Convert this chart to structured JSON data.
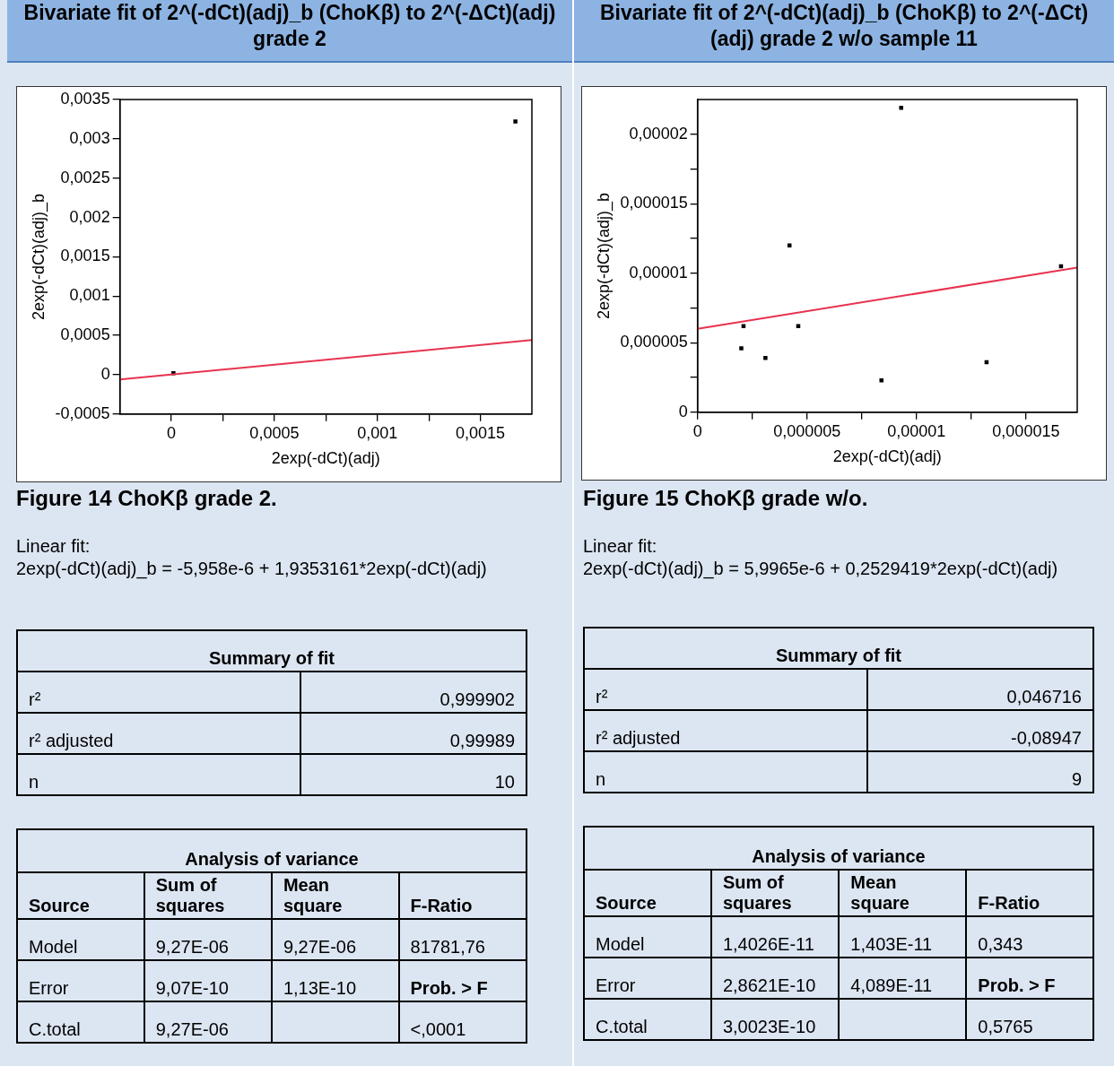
{
  "chart_data": [
    {
      "type": "scatter",
      "title": "Bivariate fit of 2^(-dCt)(adj)_b (ChoKβ) to 2^(-ΔCt)(adj) grade 2",
      "xlabel": "2exp(-dCt)(adj)",
      "ylabel": "2exp(-dCt)(adj)_b",
      "xlim": [
        -0.00025,
        0.00175
      ],
      "ylim": [
        -0.0005,
        0.0035
      ],
      "xticks": [
        {
          "value": 0,
          "label": "0"
        },
        {
          "value": 0.00025,
          "label": null
        },
        {
          "value": 0.0005,
          "label": "0,0005"
        },
        {
          "value": 0.00075,
          "label": null
        },
        {
          "value": 0.001,
          "label": "0,001"
        },
        {
          "value": 0.00125,
          "label": null
        },
        {
          "value": 0.0015,
          "label": "0,0015"
        }
      ],
      "yticks": [
        {
          "value": -0.0005,
          "label": "-0,0005"
        },
        {
          "value": 0,
          "label": "0"
        },
        {
          "value": 0.0005,
          "label": "0,0005"
        },
        {
          "value": 0.001,
          "label": "0,001"
        },
        {
          "value": 0.0015,
          "label": "0,0015"
        },
        {
          "value": 0.002,
          "label": "0,002"
        },
        {
          "value": 0.0025,
          "label": "0,0025"
        },
        {
          "value": 0.003,
          "label": "0,003"
        },
        {
          "value": 0.0035,
          "label": "0,0035"
        }
      ],
      "series": [
        {
          "type": "line",
          "marker": "none",
          "color": "#e8334f",
          "x": [
            -0.00025,
            0.00175
          ],
          "values": [
            -6e-05,
            0.00044
          ]
        },
        {
          "marker": "square",
          "color": "#000000",
          "x": [
            1e-05,
            0.00167
          ],
          "values": [
            2e-05,
            0.00322
          ]
        }
      ],
      "annotations": [
        "Figure 14 ChoKβ grade 2.",
        "Linear fit:",
        "2exp(-dCt)(adj)_b = -5,958e-6 + 1,9353161*2exp(-dCt)(adj)",
        "Summary of fit",
        "r²",
        "0,999902",
        "r² adjusted",
        "0,99989",
        "n",
        "10",
        "Analysis of variance",
        "Source",
        "Sum of squares",
        "Mean square",
        "F-Ratio",
        "Model",
        "9,27E-06",
        "9,27E-06",
        "81781,76",
        "Error",
        "9,07E-10",
        "1,13E-10",
        "Prob. > F",
        "C.total",
        "9,27E-06",
        "<,0001"
      ]
    },
    {
      "type": "scatter",
      "title": "Bivariate fit of 2^(-dCt)(adj)_b (ChoKβ) to 2^(-ΔCt)(adj) grade 2 w/o sample 11",
      "xlabel": "2exp(-dCt)(adj)",
      "ylabel": "2exp(-dCt)(adj)_b",
      "xlim": [
        0,
        1.734e-05
      ],
      "ylim": [
        0,
        2.25e-05
      ],
      "xticks": [
        {
          "value": 0,
          "label": "0"
        },
        {
          "value": 2.5e-06,
          "label": null
        },
        {
          "value": 5e-06,
          "label": "0,000005"
        },
        {
          "value": 7.5e-06,
          "label": null
        },
        {
          "value": 1e-05,
          "label": "0,00001"
        },
        {
          "value": 1.25e-05,
          "label": null
        },
        {
          "value": 1.5e-05,
          "label": "0,000015"
        }
      ],
      "yticks": [
        {
          "value": 0,
          "label": "0"
        },
        {
          "value": 2.5e-06,
          "label": null
        },
        {
          "value": 5e-06,
          "label": "0,000005"
        },
        {
          "value": 7.5e-06,
          "label": null
        },
        {
          "value": 1e-05,
          "label": "0,00001"
        },
        {
          "value": 1.25e-05,
          "label": null
        },
        {
          "value": 1.5e-05,
          "label": "0,000015"
        },
        {
          "value": 1.75e-05,
          "label": null
        },
        {
          "value": 2e-05,
          "label": "0,00002"
        }
      ],
      "series": [
        {
          "type": "line",
          "marker": "none",
          "color": "#e8334f",
          "x": [
            0,
            1.734e-05
          ],
          "values": [
            6e-06,
            1.04e-05
          ]
        },
        {
          "marker": "square",
          "color": "#000000",
          "x": [
            2.1e-06,
            2e-06,
            3.1e-06,
            4.2e-06,
            4.6e-06,
            8.4e-06,
            9.3e-06,
            1.32e-05,
            1.66e-05
          ],
          "values": [
            6.2e-06,
            4.6e-06,
            3.9e-06,
            1.2e-05,
            6.2e-06,
            2.3e-06,
            2.19e-05,
            3.6e-06,
            1.05e-05
          ]
        }
      ],
      "annotations": [
        "Figure 15 ChoKβ grade w/o.",
        "Linear fit:",
        "2exp(-dCt)(adj)_b = 5,9965e-6 + 0,2529419*2exp(-dCt)(adj)",
        "Summary of fit",
        "r²",
        "0,046716",
        "r² adjusted",
        "-0,08947",
        "n",
        "9",
        "Analysis of variance",
        "Source",
        "Sum of squares",
        "Mean square",
        "F-Ratio",
        "Model",
        "1,4026E-11",
        "1,403E-11",
        "0,343",
        "Error",
        "2,8621E-10",
        "4,089E-11",
        "Prob. > F",
        "C.total",
        "3,0023E-10",
        "0,5765"
      ]
    }
  ]
}
